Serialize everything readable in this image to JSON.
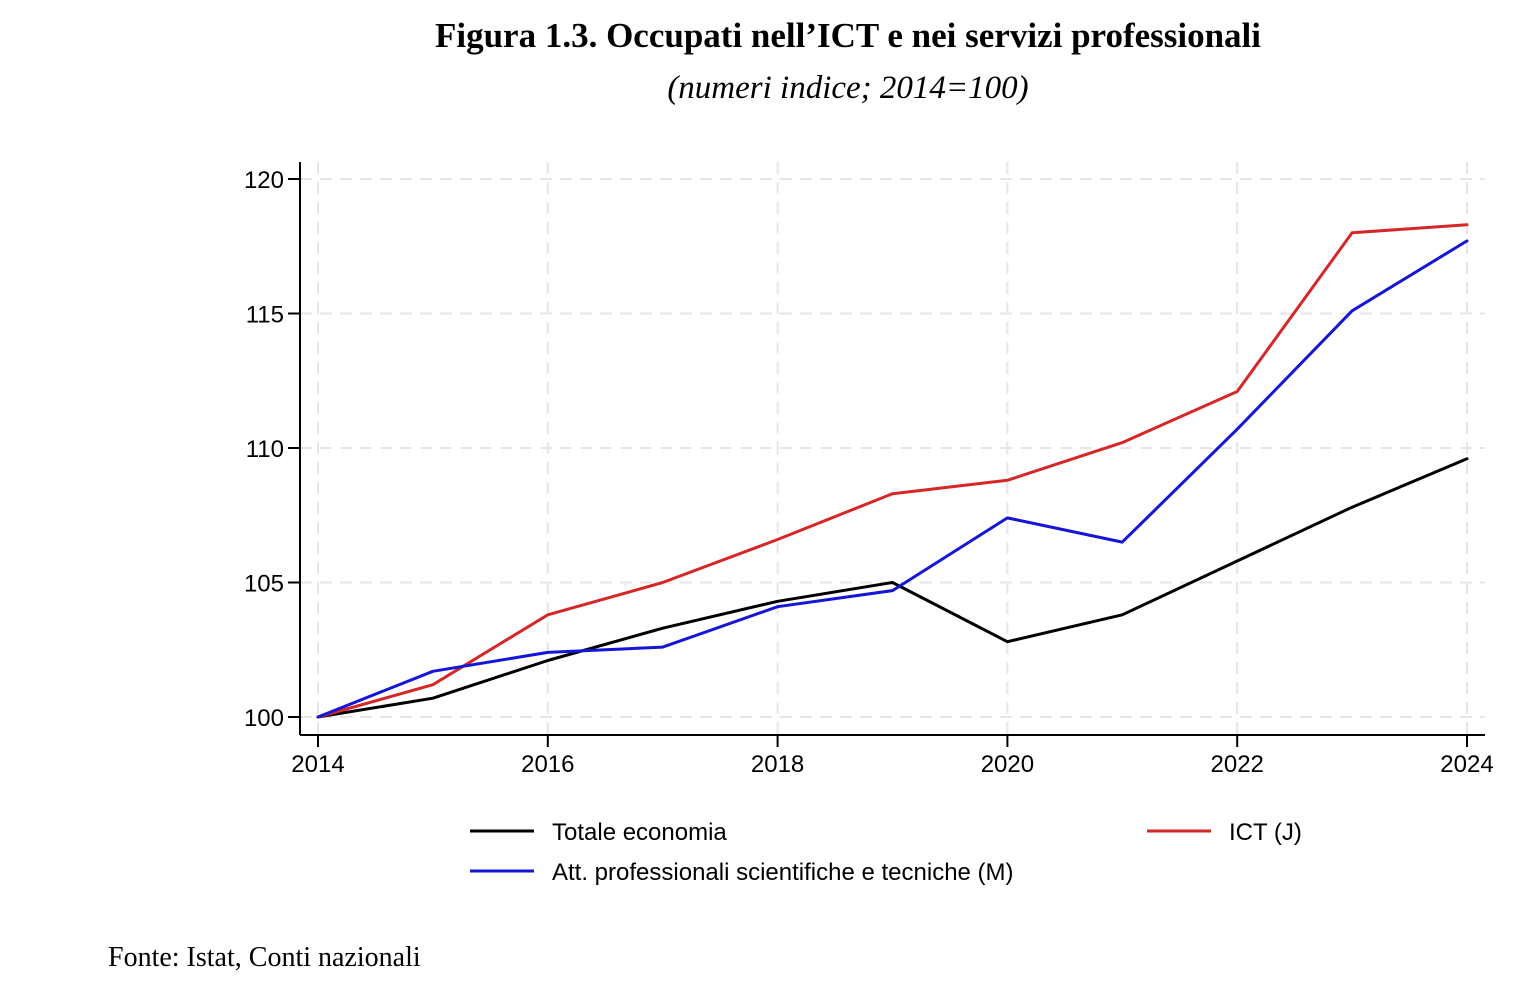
{
  "header": {
    "title": "Figura 1.3. Occupati nell’ICT e nei servizi professionali",
    "subtitle": "(numeri indice; 2014=100)"
  },
  "footer": {
    "source": "Fonte: Istat, Conti nazionali"
  },
  "chart_data": {
    "type": "line",
    "title": "Figura 1.3. Occupati nell’ICT e nei servizi professionali",
    "subtitle": "(numeri indice; 2014=100)",
    "xlabel": "",
    "ylabel": "",
    "x": [
      2014,
      2015,
      2016,
      2017,
      2018,
      2019,
      2020,
      2021,
      2022,
      2023,
      2024
    ],
    "xlim": [
      2014,
      2024
    ],
    "ylim": [
      100,
      120
    ],
    "xticks": [
      2014,
      2016,
      2018,
      2020,
      2022,
      2024
    ],
    "yticks": [
      100,
      105,
      110,
      115,
      120
    ],
    "grid": true,
    "legend_position": "bottom",
    "series": [
      {
        "name": "Totale economia",
        "color": "#000000",
        "values": [
          100.0,
          100.7,
          102.1,
          103.3,
          104.3,
          105.0,
          102.8,
          103.8,
          105.8,
          107.8,
          109.6
        ]
      },
      {
        "name": "ICT (J)",
        "color": "#d62728",
        "values": [
          100.0,
          101.2,
          103.8,
          105.0,
          106.6,
          108.3,
          108.8,
          110.2,
          112.1,
          118.0,
          118.3
        ]
      },
      {
        "name": "Att. professionali scientifiche e tecniche (M)",
        "color": "#1515d6",
        "values": [
          100.0,
          101.7,
          102.4,
          102.6,
          104.1,
          104.7,
          107.4,
          106.5,
          110.7,
          115.1,
          117.7
        ]
      }
    ]
  }
}
